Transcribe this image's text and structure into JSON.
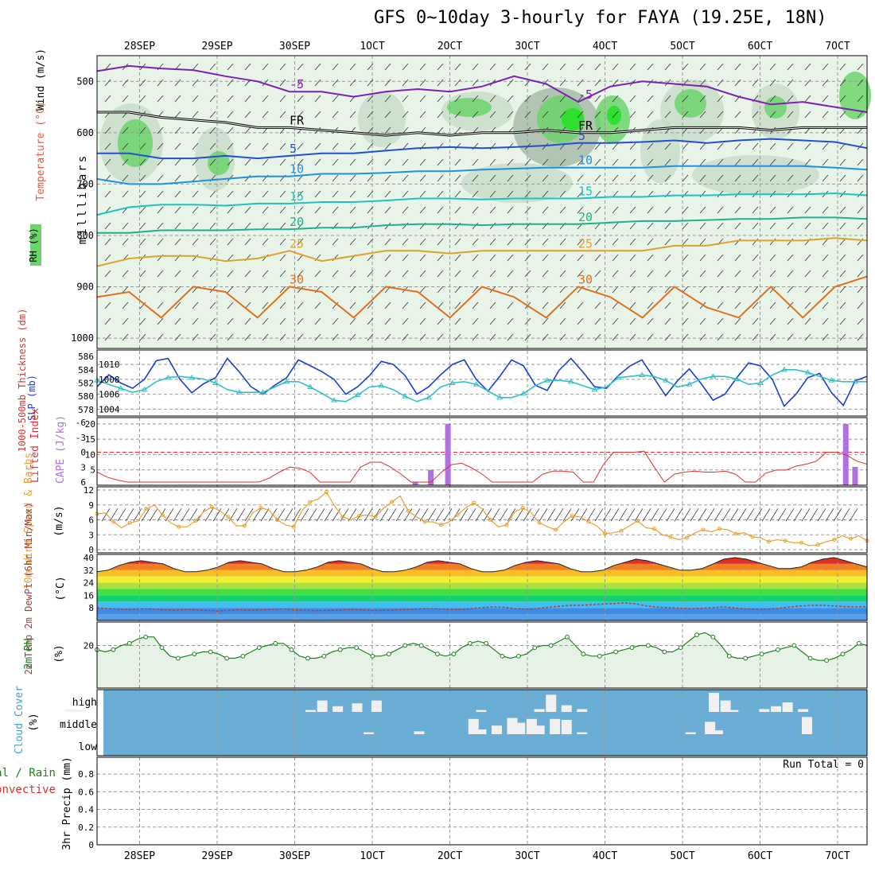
{
  "title": "GFS 0~10day 3-hourly for FAYA (19.25E, 18N)",
  "run_total": "Run Total = 0",
  "colors": {
    "rh_light": "#e8f4e8",
    "rh_mid": "#c9dcc9",
    "rh_dark": "#a8bca8",
    "rh_green": "#6cd46c",
    "rh_bright": "#22e022",
    "slp": "#1a3fd0",
    "thickness": "#30c0c8",
    "lifted": "#e03030",
    "cape": "#b070e0",
    "wind10": "#e8a030",
    "rh2m": "#208020",
    "cloud_bg": "#6aaed6",
    "cloud_bar": "#f0f0f0"
  },
  "chart_data": [
    {
      "type": "contour",
      "panel": "upper-air",
      "ylabel": "milllibars",
      "side_labels": [
        "RH (%)",
        "Temperature (°C)",
        "Wind (m/s)"
      ],
      "x_ticks": [
        "28SEP",
        "29SEP",
        "30SEP",
        "1OCT",
        "2OCT",
        "3OCT",
        "4OCT",
        "5OCT",
        "6OCT",
        "7OCT"
      ],
      "y_ticks": [
        500,
        600,
        700,
        800,
        900,
        1000
      ],
      "ylim": [
        450,
        1020
      ],
      "isotherms": [
        {
          "value": -5,
          "label": "-5",
          "color": "#8020b0",
          "levels": [
            480,
            470,
            475,
            478,
            490,
            500,
            520,
            520,
            530,
            520,
            515,
            520,
            510,
            490,
            505,
            540,
            510,
            500,
            505,
            510,
            530,
            545,
            540,
            550,
            560
          ]
        },
        {
          "value": 0,
          "label": "FR",
          "color": "#000000",
          "levels": [
            560,
            560,
            570,
            575,
            580,
            590,
            590,
            595,
            600,
            605,
            600,
            605,
            600,
            600,
            595,
            600,
            600,
            595,
            590,
            590,
            590,
            595,
            590,
            590,
            590
          ]
        },
        {
          "value": 5,
          "label": "5",
          "color": "#2050d0",
          "levels": [
            640,
            640,
            650,
            650,
            645,
            650,
            645,
            640,
            640,
            635,
            630,
            628,
            630,
            628,
            625,
            620,
            620,
            618,
            615,
            620,
            615,
            612,
            615,
            618,
            630
          ]
        },
        {
          "value": 10,
          "label": "10",
          "color": "#2090e0",
          "levels": [
            690,
            700,
            700,
            695,
            690,
            685,
            685,
            680,
            680,
            678,
            675,
            675,
            672,
            670,
            668,
            668,
            668,
            668,
            665,
            665,
            665,
            665,
            665,
            668,
            672
          ]
        },
        {
          "value": 15,
          "label": "15",
          "color": "#20c0c0",
          "levels": [
            760,
            745,
            740,
            740,
            742,
            738,
            738,
            735,
            735,
            732,
            728,
            728,
            730,
            728,
            728,
            728,
            725,
            725,
            722,
            722,
            720,
            720,
            720,
            718,
            722
          ]
        },
        {
          "value": 20,
          "label": "20",
          "color": "#20b090",
          "levels": [
            795,
            795,
            790,
            790,
            790,
            788,
            788,
            785,
            785,
            780,
            778,
            778,
            780,
            778,
            778,
            778,
            775,
            772,
            772,
            770,
            768,
            768,
            765,
            765,
            768
          ]
        },
        {
          "value": 25,
          "label": "25",
          "color": "#e0a030",
          "levels": [
            860,
            845,
            840,
            840,
            850,
            845,
            830,
            850,
            840,
            830,
            830,
            835,
            830,
            830,
            830,
            830,
            830,
            830,
            820,
            820,
            810,
            810,
            810,
            805,
            810
          ]
        },
        {
          "value": 30,
          "label": "30",
          "color": "#e07020",
          "levels": [
            920,
            910,
            960,
            900,
            910,
            960,
            900,
            910,
            960,
            900,
            910,
            960,
            900,
            920,
            960,
            900,
            920,
            960,
            900,
            940,
            960,
            900,
            960,
            900,
            880
          ]
        }
      ],
      "rh_contour_labels": [
        "30",
        "30",
        "30"
      ]
    },
    {
      "type": "line",
      "panel": "slp-thickness",
      "left_label": "1000-500mb Thickness (dm)",
      "right_label": "SLP (mb)",
      "left_ticks": [
        578,
        580,
        582,
        584,
        586
      ],
      "right_ticks": [
        1004,
        1006,
        1008,
        1010
      ],
      "series": [
        {
          "name": "SLP",
          "axis": "right",
          "color": "#1a3fd0",
          "values": [
            1007,
            1008.6,
            1007.5,
            1006.8,
            1008,
            1010.5,
            1010.8,
            1008,
            1006.2,
            1007.4,
            1008.2,
            1010.8,
            1009,
            1007,
            1006,
            1007.2,
            1008.2,
            1010.6,
            1009.8,
            1009,
            1008,
            1006,
            1007,
            1008.5,
            1010.4,
            1010,
            1008.5,
            1006,
            1007,
            1008.6,
            1010,
            1010.6,
            1008,
            1006.4,
            1008.4,
            1010.6,
            1009.8,
            1007.2,
            1006.5,
            1009.2,
            1010.8,
            1009,
            1007,
            1006.8,
            1008.5,
            1009.8,
            1010.6,
            1008.2,
            1005.8,
            1007.8,
            1009.4,
            1007.4,
            1005.2,
            1006,
            1008.2,
            1010.2,
            1009.8,
            1008,
            1004.4,
            1006,
            1008.2,
            1008.8,
            1006.2,
            1004.5,
            1007.8,
            1008.4
          ]
        },
        {
          "name": "Thickness",
          "axis": "left",
          "color": "#30c0c8",
          "values": [
            582.4,
            581.8,
            581.2,
            580.6,
            581,
            582.2,
            582.8,
            583,
            582.8,
            582.6,
            582,
            581,
            580.6,
            580.6,
            580.6,
            581.4,
            582.2,
            582.2,
            581.4,
            580.4,
            579.4,
            579.2,
            580.2,
            581.4,
            581.6,
            581,
            580,
            579.2,
            579.8,
            581.4,
            582,
            582.2,
            581.8,
            580.8,
            579.8,
            579.8,
            580.4,
            581.6,
            582.4,
            582.4,
            582.2,
            581.6,
            581,
            581.4,
            582.8,
            583,
            583.2,
            583,
            582.4,
            581.4,
            581.8,
            582.6,
            583,
            583,
            582.6,
            581.8,
            582,
            583.2,
            584,
            584,
            583.6,
            583,
            582.4,
            582.2,
            582.2,
            582.2
          ]
        }
      ]
    },
    {
      "type": "bar-line",
      "panel": "lifted-cape",
      "left_label": "Lifted Index",
      "right_label": "CAPE (J/kg)",
      "left_ticks": [
        "6",
        "3",
        "0",
        "-3",
        "-6"
      ],
      "right_ticks": [
        5,
        10,
        15,
        20
      ],
      "lifted_index": [
        4,
        5,
        5.6,
        6,
        6,
        6,
        6,
        6,
        6,
        6,
        6,
        6,
        6,
        6,
        6,
        6,
        6,
        5.2,
        4,
        3,
        3.2,
        4,
        6,
        6,
        6,
        6,
        3,
        2,
        2,
        3,
        4.4,
        6,
        6,
        6,
        4,
        2.5,
        2.2,
        3.2,
        4.4,
        6,
        6,
        6,
        6,
        6,
        4.4,
        3.8,
        3.8,
        4,
        6,
        6,
        2.4,
        0,
        0,
        0,
        -0.2,
        3,
        6,
        4.4,
        4,
        3.8,
        4,
        4,
        3.8,
        4.4,
        6,
        6,
        4.2,
        3.6,
        3.6,
        2.8,
        2.4,
        1.8,
        0,
        0,
        0.6,
        1.8,
        2.4
      ],
      "cape_bars": [
        {
          "x": 4.55,
          "value": 1
        },
        {
          "x": 4.75,
          "value": 5
        },
        {
          "x": 4.97,
          "value": 20
        },
        {
          "x": 10.1,
          "value": 20
        },
        {
          "x": 10.22,
          "value": 6
        }
      ]
    },
    {
      "type": "line",
      "panel": "wind10m",
      "left_label": "10m Wind Speed & Barbs",
      "right_label": "(m/s)",
      "y_ticks": [
        0,
        3,
        6,
        9,
        12
      ],
      "values": [
        7.2,
        7.4,
        5.6,
        4.4,
        5.4,
        5.8,
        8.2,
        9,
        7,
        5.4,
        4.6,
        4.6,
        5.8,
        7.6,
        8.6,
        7.8,
        6.6,
        4.8,
        4.8,
        7.4,
        8.4,
        8,
        6,
        5,
        4.6,
        7.8,
        9.6,
        10.2,
        11.6,
        8.8,
        6.6,
        6,
        6.8,
        7,
        6.6,
        8.4,
        9.6,
        10.8,
        7.8,
        6.6,
        5.6,
        5.6,
        5,
        5.6,
        7,
        8.4,
        9.4,
        8.2,
        6,
        4.6,
        5,
        7.6,
        8.4,
        7.4,
        5.4,
        4.6,
        4,
        5.6,
        6.8,
        6.6,
        5.6,
        4.8,
        3.2,
        3.4,
        3.8,
        4.8,
        5.8,
        4.4,
        4.2,
        3,
        2.6,
        2,
        2.4,
        3.4,
        4,
        3.6,
        4.2,
        4,
        3.2,
        3.4,
        2.6,
        2.4,
        1.6,
        2,
        1.8,
        1.4,
        1.4,
        0.8,
        1,
        1.6,
        2,
        2.8,
        2.2,
        2.8,
        1.8
      ],
      "barb_count": 95
    },
    {
      "type": "area",
      "panel": "temp-dewpt",
      "left_label": "2m Temp 2m DewPt (6hr Min/Max)",
      "right_label": "(°C)",
      "y_ticks": [
        8,
        16,
        24,
        32,
        40
      ],
      "ylim": [
        0,
        42
      ],
      "temp": [
        31,
        32,
        35,
        37,
        38,
        37,
        36,
        33,
        31,
        31,
        32,
        34,
        37,
        38,
        37,
        36,
        33,
        31,
        31,
        32,
        34,
        37,
        38,
        37,
        36,
        33,
        31,
        31,
        32,
        34,
        37,
        38,
        37,
        36,
        33,
        31,
        31,
        32,
        35,
        37,
        38,
        37,
        36,
        33,
        31,
        31,
        32,
        35,
        37,
        39,
        38,
        36,
        34,
        32,
        32,
        33,
        36,
        39,
        40,
        39,
        37,
        35,
        33,
        33,
        34,
        37,
        39,
        40,
        38,
        36,
        34
      ],
      "dewpt": [
        8,
        7.6,
        7.2,
        7,
        7.4,
        7.4,
        6.8,
        6.6,
        7,
        6.8,
        6.4,
        6,
        6.4,
        6.8,
        6.6,
        6.8,
        7,
        7.4,
        6.8,
        6.4,
        6.2,
        6.4,
        6.6,
        7,
        6.8,
        6.4,
        6.4,
        6.6,
        7,
        7.2,
        7.6,
        7.4,
        7,
        7,
        7.6,
        8.2,
        8.6,
        8.4,
        7.6,
        7.2,
        7.6,
        8.4,
        9,
        9.6,
        9.6,
        10,
        10.4,
        10.8,
        11.2,
        10.6,
        9.2,
        8.4,
        8.2,
        7.8,
        7.6,
        7.8,
        8.2,
        8.6,
        8,
        7.4,
        7.2,
        7.2,
        7.8,
        8.6,
        9.2,
        9.6,
        9.6,
        9.2,
        8.8,
        8.6,
        8.8
      ]
    },
    {
      "type": "line",
      "panel": "rh2m",
      "left_label": "2m RH",
      "right_label": "(%)",
      "y_ticks": [
        20
      ],
      "ylim": [
        0,
        31
      ],
      "values": [
        18,
        17,
        18,
        20,
        21,
        23,
        24,
        24,
        19,
        15,
        14,
        15,
        16,
        17,
        17,
        16,
        14,
        14,
        15,
        17,
        19,
        20,
        21,
        21,
        18,
        15,
        14,
        14,
        15,
        17,
        18,
        19,
        19,
        17,
        15,
        15,
        16,
        18,
        20,
        21,
        20,
        18,
        16,
        15,
        16,
        19,
        21,
        22,
        21,
        18,
        15,
        14,
        15,
        16,
        19,
        20,
        20,
        22,
        24,
        20,
        16,
        15,
        15,
        16,
        17,
        18,
        19,
        20,
        20,
        19,
        17,
        17,
        19,
        22,
        25,
        26,
        24,
        20,
        15,
        14,
        14,
        15,
        16,
        17,
        18,
        19,
        20,
        17,
        14,
        13,
        13,
        14,
        16,
        18,
        21,
        20
      ]
    },
    {
      "type": "bar",
      "panel": "cloud",
      "left_label": "Cloud Cover",
      "right_label": "(%)",
      "rows": [
        "high",
        "middle",
        "low"
      ],
      "high": [
        [
          0.1,
          0.15
        ],
        [
          0.2,
          0.12
        ],
        [
          3.2,
          0.1
        ],
        [
          3.35,
          0.6
        ],
        [
          3.55,
          0.3
        ],
        [
          3.8,
          0.45
        ],
        [
          4.05,
          0.6
        ],
        [
          5.4,
          0.1
        ],
        [
          6.15,
          0.15
        ],
        [
          6.3,
          0.9
        ],
        [
          6.5,
          0.35
        ],
        [
          6.7,
          0.15
        ],
        [
          8.4,
          1
        ],
        [
          8.55,
          0.6
        ],
        [
          8.65,
          0.1
        ],
        [
          9.05,
          0.15
        ],
        [
          9.2,
          0.3
        ],
        [
          9.35,
          0.5
        ],
        [
          9.55,
          0.15
        ]
      ],
      "middle": [
        [
          3.95,
          0.1
        ],
        [
          4.6,
          0.15
        ],
        [
          5.3,
          0.8
        ],
        [
          5.4,
          0.25
        ],
        [
          5.6,
          0.45
        ],
        [
          5.8,
          0.85
        ],
        [
          5.9,
          0.6
        ],
        [
          6.05,
          0.8
        ],
        [
          6.15,
          0.45
        ],
        [
          6.35,
          0.8
        ],
        [
          6.5,
          0.75
        ],
        [
          6.7,
          0.1
        ],
        [
          8.1,
          0.1
        ],
        [
          8.35,
          0.65
        ],
        [
          8.45,
          0.2
        ],
        [
          9.6,
          0.9
        ]
      ],
      "low": []
    },
    {
      "type": "bar",
      "panel": "precip",
      "left_label": "3hr Precip (mm)",
      "side_labels": [
        "Total / Rain",
        "Convective"
      ],
      "y_ticks": [
        0,
        0.2,
        0.4,
        0.6,
        0.8
      ],
      "ylim": [
        0,
        0.9
      ],
      "values": []
    }
  ]
}
